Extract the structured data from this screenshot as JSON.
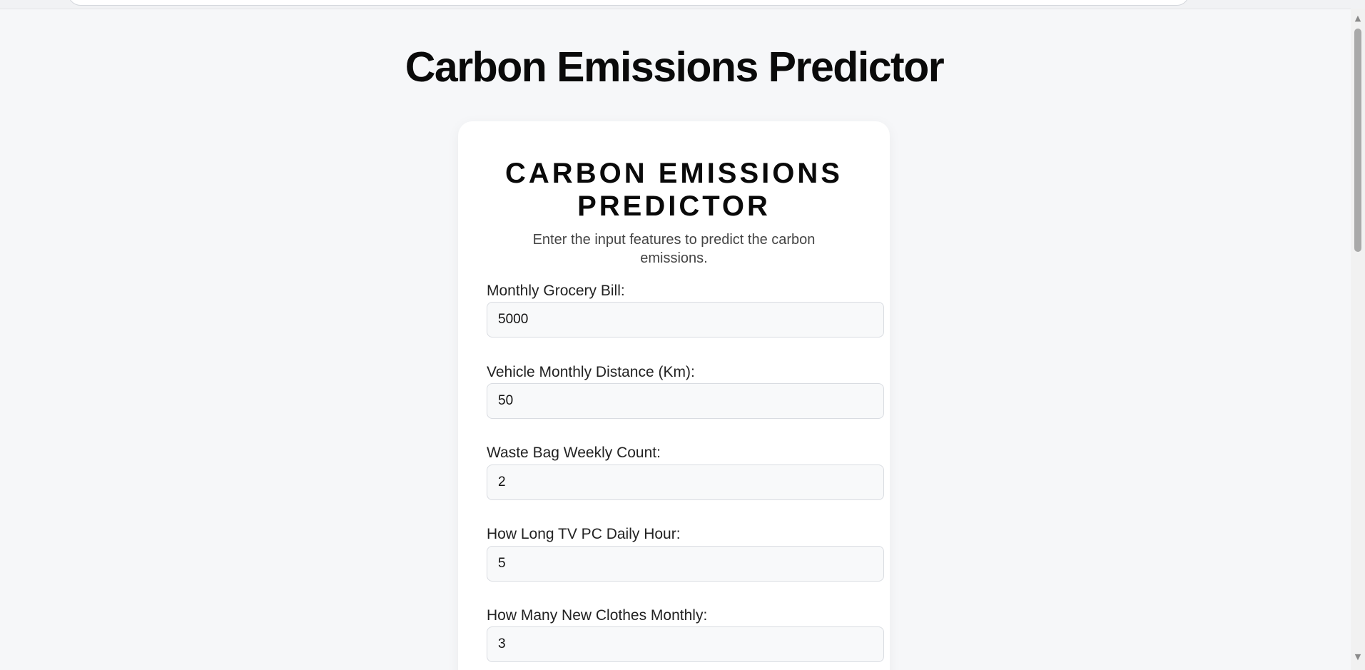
{
  "page": {
    "title": "Carbon Emissions Predictor"
  },
  "card": {
    "title": "CARBON EMISSIONS PREDICTOR",
    "subtitle": "Enter the input features to predict the carbon emissions."
  },
  "fields": [
    {
      "label": "Monthly Grocery Bill:",
      "value": "5000"
    },
    {
      "label": "Vehicle Monthly Distance (Km):",
      "value": "50"
    },
    {
      "label": "Waste Bag Weekly Count:",
      "value": "2"
    },
    {
      "label": "How Long TV PC Daily Hour:",
      "value": "5"
    },
    {
      "label": "How Many New Clothes Monthly:",
      "value": "3"
    }
  ],
  "scrollbar": {
    "up_icon": "triangle-up-icon",
    "down_icon": "triangle-down-icon"
  }
}
